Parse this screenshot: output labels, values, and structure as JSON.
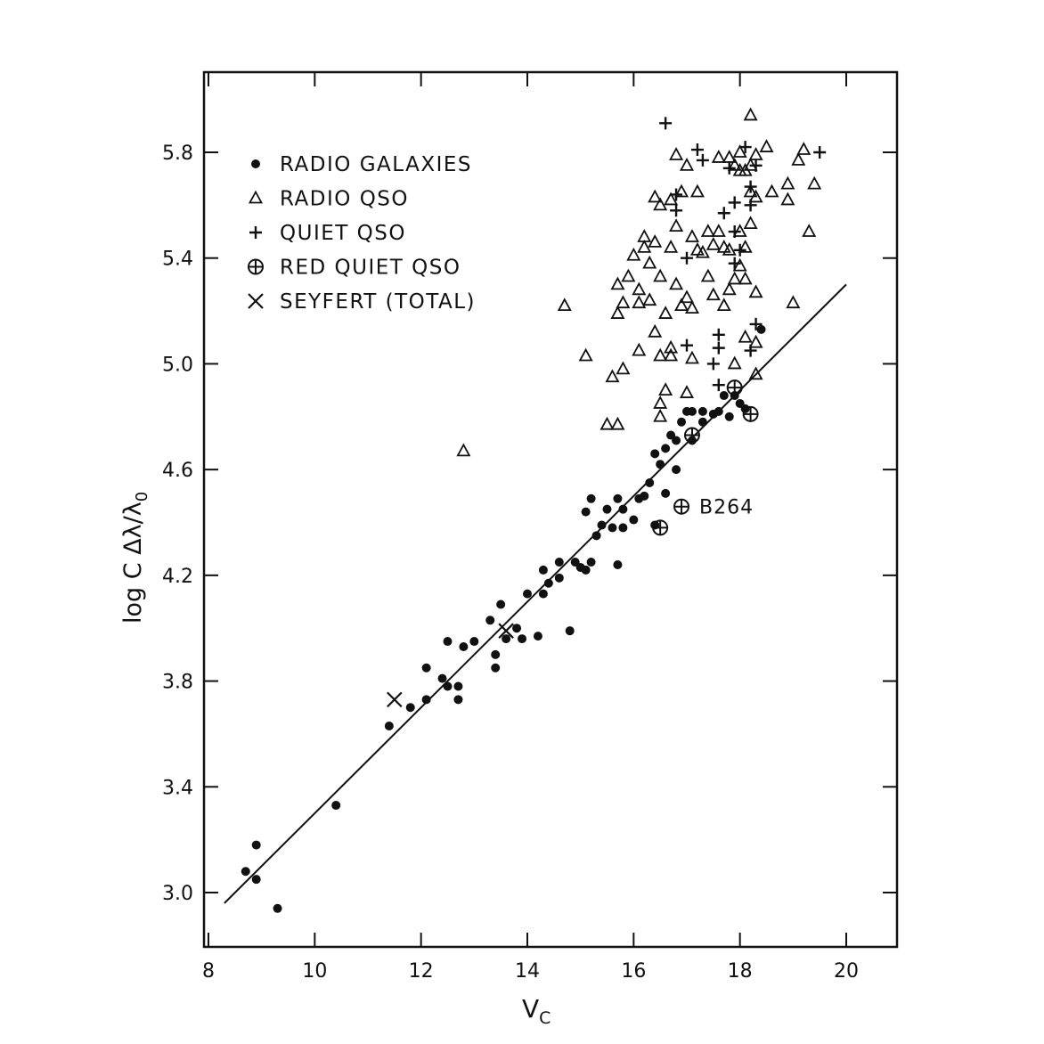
{
  "chart_data": {
    "type": "scatter",
    "title": "",
    "xlabel": "V",
    "xlabel_sub": "C",
    "ylabel": "log C Δλ/λ",
    "ylabel_sub": "0",
    "xlim": [
      8,
      21.3
    ],
    "ylim": [
      2.8,
      6.1
    ],
    "xticks": [
      8,
      10,
      12,
      14,
      16,
      18,
      20
    ],
    "yticks": [
      3.0,
      3.4,
      3.8,
      4.2,
      4.6,
      5.0,
      5.4,
      5.8
    ],
    "xtick_labels": [
      "8",
      "10",
      "12",
      "14",
      "16",
      "18",
      "20"
    ],
    "ytick_labels": [
      "3.0",
      "3.4",
      "3.8",
      "4.2",
      "4.6",
      "5.0",
      "5.4",
      "5.8"
    ],
    "legend_position": "top-left",
    "legend": [
      {
        "marker": "dot",
        "label": "RADIO  GALAXIES"
      },
      {
        "marker": "triangle",
        "label": "RADIO  QSO"
      },
      {
        "marker": "plus",
        "label": "QUIET  QSO"
      },
      {
        "marker": "circleplus",
        "label": "RED  QUIET QSO"
      },
      {
        "marker": "cross",
        "label": "SEYFERT (TOTAL)"
      }
    ],
    "fit_line": {
      "x": [
        8.3,
        20.0
      ],
      "y": [
        2.96,
        5.3
      ]
    },
    "annotations": [
      {
        "text": "B264",
        "x": 17.0,
        "y": 4.46
      }
    ],
    "series": [
      {
        "marker": "dot",
        "points": [
          [
            8.7,
            3.08
          ],
          [
            8.9,
            3.05
          ],
          [
            8.9,
            3.18
          ],
          [
            9.3,
            2.94
          ],
          [
            10.4,
            3.33
          ],
          [
            11.4,
            3.63
          ],
          [
            11.8,
            3.7
          ],
          [
            12.1,
            3.73
          ],
          [
            12.1,
            3.85
          ],
          [
            12.4,
            3.81
          ],
          [
            12.5,
            3.78
          ],
          [
            12.5,
            3.95
          ],
          [
            12.7,
            3.78
          ],
          [
            12.7,
            3.73
          ],
          [
            12.8,
            3.93
          ],
          [
            13.0,
            3.95
          ],
          [
            13.3,
            4.03
          ],
          [
            13.4,
            3.9
          ],
          [
            13.4,
            3.85
          ],
          [
            13.5,
            4.09
          ],
          [
            13.6,
            3.96
          ],
          [
            13.8,
            4.0
          ],
          [
            13.9,
            3.96
          ],
          [
            14.0,
            4.13
          ],
          [
            14.2,
            3.97
          ],
          [
            14.3,
            4.22
          ],
          [
            14.3,
            4.13
          ],
          [
            14.4,
            4.17
          ],
          [
            14.6,
            4.25
          ],
          [
            14.6,
            4.19
          ],
          [
            14.8,
            3.99
          ],
          [
            14.9,
            4.25
          ],
          [
            15.0,
            4.23
          ],
          [
            15.1,
            4.44
          ],
          [
            15.1,
            4.22
          ],
          [
            15.2,
            4.49
          ],
          [
            15.2,
            4.25
          ],
          [
            15.3,
            4.35
          ],
          [
            15.4,
            4.39
          ],
          [
            15.5,
            4.45
          ],
          [
            15.6,
            4.38
          ],
          [
            15.7,
            4.49
          ],
          [
            15.7,
            4.24
          ],
          [
            15.8,
            4.45
          ],
          [
            15.8,
            4.38
          ],
          [
            16.0,
            4.41
          ],
          [
            16.1,
            4.49
          ],
          [
            16.2,
            4.5
          ],
          [
            16.3,
            4.55
          ],
          [
            16.4,
            4.39
          ],
          [
            16.4,
            4.66
          ],
          [
            16.5,
            4.62
          ],
          [
            16.6,
            4.51
          ],
          [
            16.6,
            4.68
          ],
          [
            16.7,
            4.73
          ],
          [
            16.8,
            4.6
          ],
          [
            16.8,
            4.71
          ],
          [
            16.9,
            4.78
          ],
          [
            17.0,
            4.82
          ],
          [
            17.1,
            4.82
          ],
          [
            17.1,
            4.71
          ],
          [
            17.3,
            4.78
          ],
          [
            17.3,
            4.82
          ],
          [
            17.5,
            4.81
          ],
          [
            17.6,
            4.82
          ],
          [
            17.7,
            4.88
          ],
          [
            17.8,
            4.8
          ],
          [
            17.9,
            4.88
          ],
          [
            18.0,
            4.85
          ],
          [
            18.1,
            4.83
          ],
          [
            18.4,
            5.13
          ]
        ]
      },
      {
        "marker": "triangle",
        "points": [
          [
            12.8,
            4.67
          ],
          [
            14.7,
            5.22
          ],
          [
            15.1,
            5.03
          ],
          [
            15.5,
            4.77
          ],
          [
            15.6,
            4.95
          ],
          [
            15.7,
            4.77
          ],
          [
            15.8,
            4.98
          ],
          [
            15.7,
            5.19
          ],
          [
            15.7,
            5.3
          ],
          [
            15.8,
            5.23
          ],
          [
            15.9,
            5.33
          ],
          [
            16.0,
            5.41
          ],
          [
            16.1,
            5.05
          ],
          [
            16.1,
            5.28
          ],
          [
            16.1,
            5.23
          ],
          [
            16.2,
            5.44
          ],
          [
            16.2,
            5.48
          ],
          [
            16.3,
            5.24
          ],
          [
            16.3,
            5.38
          ],
          [
            16.4,
            5.46
          ],
          [
            16.4,
            5.63
          ],
          [
            16.4,
            5.12
          ],
          [
            16.5,
            4.8
          ],
          [
            16.5,
            4.85
          ],
          [
            16.5,
            5.03
          ],
          [
            16.5,
            5.33
          ],
          [
            16.5,
            5.6
          ],
          [
            16.6,
            4.9
          ],
          [
            16.6,
            5.19
          ],
          [
            16.7,
            5.44
          ],
          [
            16.7,
            5.62
          ],
          [
            16.7,
            5.06
          ],
          [
            16.7,
            5.03
          ],
          [
            16.8,
            5.3
          ],
          [
            16.8,
            5.52
          ],
          [
            16.8,
            5.79
          ],
          [
            16.9,
            5.22
          ],
          [
            16.9,
            5.65
          ],
          [
            17.0,
            4.89
          ],
          [
            17.0,
            5.25
          ],
          [
            17.0,
            5.75
          ],
          [
            17.1,
            5.02
          ],
          [
            17.1,
            5.21
          ],
          [
            17.1,
            5.48
          ],
          [
            17.2,
            5.65
          ],
          [
            17.2,
            5.43
          ],
          [
            17.3,
            5.42
          ],
          [
            17.4,
            5.5
          ],
          [
            17.4,
            5.33
          ],
          [
            17.5,
            5.26
          ],
          [
            17.5,
            5.45
          ],
          [
            17.6,
            5.5
          ],
          [
            17.6,
            5.78
          ],
          [
            17.7,
            5.22
          ],
          [
            17.7,
            5.44
          ],
          [
            17.8,
            5.28
          ],
          [
            17.8,
            5.43
          ],
          [
            17.8,
            5.78
          ],
          [
            17.9,
            5.0
          ],
          [
            17.9,
            5.32
          ],
          [
            17.9,
            5.75
          ],
          [
            18.0,
            5.5
          ],
          [
            18.0,
            5.37
          ],
          [
            18.0,
            5.73
          ],
          [
            18.0,
            5.8
          ],
          [
            18.1,
            5.1
          ],
          [
            18.1,
            5.32
          ],
          [
            18.1,
            5.44
          ],
          [
            18.1,
            5.73
          ],
          [
            18.2,
            5.94
          ],
          [
            18.2,
            5.53
          ],
          [
            18.2,
            5.65
          ],
          [
            18.2,
            5.75
          ],
          [
            18.3,
            4.96
          ],
          [
            18.3,
            5.08
          ],
          [
            18.3,
            5.27
          ],
          [
            18.3,
            5.63
          ],
          [
            18.3,
            5.79
          ],
          [
            18.5,
            5.82
          ],
          [
            18.6,
            5.65
          ],
          [
            18.9,
            5.68
          ],
          [
            18.9,
            5.62
          ],
          [
            19.0,
            5.23
          ],
          [
            19.1,
            5.77
          ],
          [
            19.2,
            5.81
          ],
          [
            19.3,
            5.5
          ],
          [
            19.4,
            5.68
          ]
        ]
      },
      {
        "marker": "plus",
        "points": [
          [
            16.6,
            5.91
          ],
          [
            17.0,
            5.4
          ],
          [
            16.8,
            5.58
          ],
          [
            16.8,
            5.64
          ],
          [
            17.0,
            5.07
          ],
          [
            17.2,
            5.81
          ],
          [
            17.3,
            5.77
          ],
          [
            17.5,
            5.0
          ],
          [
            17.6,
            5.06
          ],
          [
            17.6,
            5.11
          ],
          [
            17.6,
            4.92
          ],
          [
            17.7,
            5.57
          ],
          [
            17.8,
            5.74
          ],
          [
            17.9,
            5.5
          ],
          [
            17.9,
            5.61
          ],
          [
            17.9,
            5.38
          ],
          [
            18.0,
            5.43
          ],
          [
            18.1,
            5.82
          ],
          [
            18.2,
            5.05
          ],
          [
            18.2,
            5.6
          ],
          [
            18.2,
            5.67
          ],
          [
            18.3,
            5.15
          ],
          [
            18.3,
            5.75
          ],
          [
            19.5,
            5.8
          ]
        ]
      },
      {
        "marker": "circleplus",
        "points": [
          [
            16.5,
            4.38
          ],
          [
            16.9,
            4.46
          ],
          [
            17.1,
            4.73
          ],
          [
            17.9,
            4.91
          ],
          [
            18.2,
            4.81
          ]
        ]
      },
      {
        "marker": "cross",
        "points": [
          [
            11.5,
            3.73
          ],
          [
            13.6,
            3.99
          ]
        ]
      }
    ]
  }
}
